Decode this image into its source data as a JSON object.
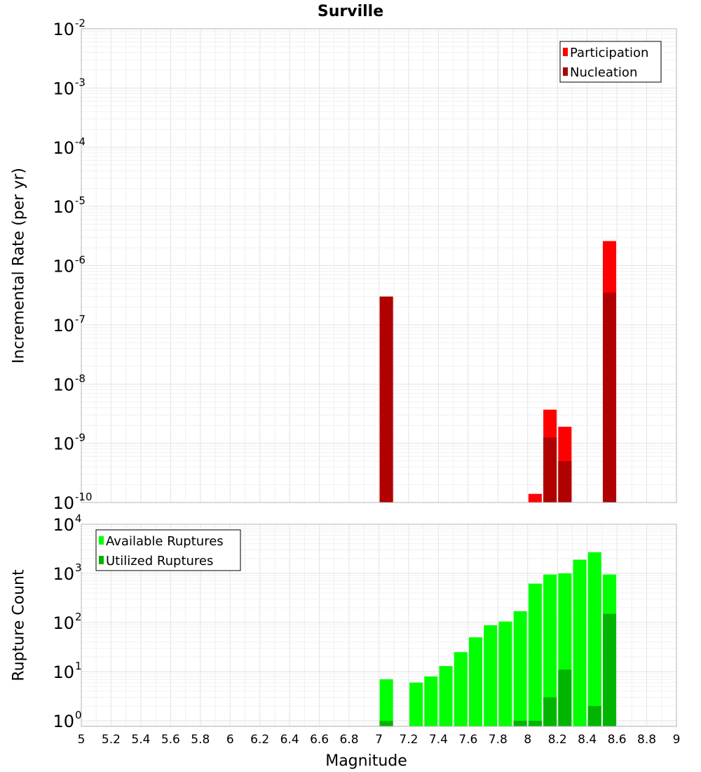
{
  "chart_data": [
    {
      "type": "bar",
      "title": "Surville",
      "xlabel": "",
      "ylabel": "Incremental Rate (per yr)",
      "yscale": "log",
      "ylim": [
        1e-10,
        0.01
      ],
      "xlim": [
        5,
        9
      ],
      "grid": true,
      "legend_position": "top-right",
      "y_tick_labels": [
        {
          "base": "10",
          "exp": "-10",
          "value": 1e-10
        },
        {
          "base": "10",
          "exp": "-9",
          "value": 1e-09
        },
        {
          "base": "10",
          "exp": "-8",
          "value": 1e-08
        },
        {
          "base": "10",
          "exp": "-7",
          "value": 1e-07
        },
        {
          "base": "10",
          "exp": "-6",
          "value": 1e-06
        },
        {
          "base": "10",
          "exp": "-5",
          "value": 1e-05
        },
        {
          "base": "10",
          "exp": "-4",
          "value": 0.0001
        },
        {
          "base": "10",
          "exp": "-3",
          "value": 0.001
        },
        {
          "base": "10",
          "exp": "-2",
          "value": 0.01
        }
      ],
      "series": [
        {
          "name": "Participation",
          "color": "#ff0000",
          "x": [
            7.05,
            8.05,
            8.15,
            8.25,
            8.55
          ],
          "values": [
            3e-07,
            1.4e-10,
            3.7e-09,
            1.9e-09,
            2.6e-06
          ]
        },
        {
          "name": "Nucleation",
          "color": "#b00000",
          "x": [
            7.05,
            8.15,
            8.25,
            8.55
          ],
          "values": [
            3e-07,
            1.25e-09,
            5e-10,
            3.5e-07
          ]
        }
      ]
    },
    {
      "type": "bar",
      "title": "",
      "xlabel": "Magnitude",
      "ylabel": "Rupture Count",
      "yscale": "log",
      "ylim": [
        0.77,
        10000
      ],
      "xlim": [
        5,
        9
      ],
      "grid": true,
      "legend_position": "top-left",
      "x_tick_labels": [
        "5",
        "5.2",
        "5.4",
        "5.6",
        "5.8",
        "6",
        "6.2",
        "6.4",
        "6.6",
        "6.8",
        "7",
        "7.2",
        "7.4",
        "7.6",
        "7.8",
        "8",
        "8.2",
        "8.4",
        "8.6",
        "8.8",
        "9"
      ],
      "y_tick_labels": [
        {
          "base": "10",
          "exp": "0",
          "value": 1
        },
        {
          "base": "10",
          "exp": "1",
          "value": 10
        },
        {
          "base": "10",
          "exp": "2",
          "value": 100
        },
        {
          "base": "10",
          "exp": "3",
          "value": 1000
        },
        {
          "base": "10",
          "exp": "4",
          "value": 10000
        }
      ],
      "series": [
        {
          "name": "Available Ruptures",
          "color": "#00ff00",
          "x": [
            7.05,
            7.25,
            7.35,
            7.45,
            7.55,
            7.65,
            7.75,
            7.85,
            7.95,
            8.05,
            8.15,
            8.25,
            8.35,
            8.45,
            8.55
          ],
          "values": [
            7,
            6,
            8,
            13,
            25,
            50,
            88,
            105,
            170,
            620,
            950,
            1000,
            1900,
            2700,
            950
          ]
        },
        {
          "name": "Utilized Ruptures",
          "color": "#00b400",
          "x": [
            7.05,
            7.95,
            8.05,
            8.15,
            8.25,
            8.45,
            8.55
          ],
          "values": [
            1,
            1,
            1,
            3,
            11,
            2,
            150
          ]
        }
      ]
    }
  ]
}
